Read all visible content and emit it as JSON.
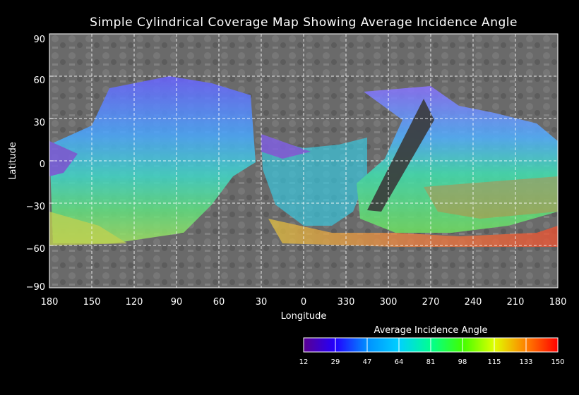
{
  "title": "Simple Cylindrical Coverage Map Showing Average Incidence Angle",
  "axes": {
    "xlabel": "Longitude",
    "ylabel": "Latitude",
    "x_ticks": [
      "180",
      "150",
      "120",
      "90",
      "60",
      "30",
      "0",
      "330",
      "300",
      "270",
      "240",
      "210",
      "180"
    ],
    "y_ticks": [
      "90",
      "60",
      "30",
      "0",
      "−30",
      "−60",
      "−90"
    ]
  },
  "colorbar": {
    "title": "Average Incidence Angle",
    "ticks": [
      "12",
      "29",
      "47",
      "64",
      "81",
      "98",
      "115",
      "133",
      "150"
    ],
    "colors": [
      "#5a0090",
      "#2200ff",
      "#0090ff",
      "#00e0c0",
      "#00ff40",
      "#a0ff00",
      "#ffd000",
      "#ff6000",
      "#ff0000"
    ]
  },
  "chart_data": {
    "type": "map",
    "projection": "simple cylindrical",
    "longitude_range": [
      180,
      -180
    ],
    "latitude_range": [
      -90,
      90
    ],
    "grid": "dashed",
    "colorbar_range": [
      12,
      150
    ]
  }
}
